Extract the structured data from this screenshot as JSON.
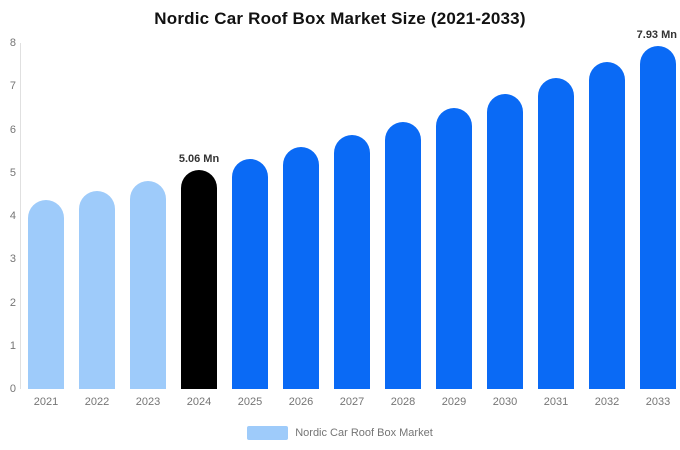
{
  "title": "Nordic Car Roof Box Market Size (2021-2033)",
  "chart_data": {
    "type": "bar",
    "title": "Nordic Car Roof Box Market Size (2021-2033)",
    "categories": [
      "2021",
      "2022",
      "2023",
      "2024",
      "2025",
      "2026",
      "2027",
      "2028",
      "2029",
      "2030",
      "2031",
      "2032",
      "2033"
    ],
    "series": [
      {
        "name": "Nordic Car Roof Box Market",
        "values": [
          4.36,
          4.58,
          4.81,
          5.06,
          5.32,
          5.59,
          5.88,
          6.18,
          6.5,
          6.83,
          7.18,
          7.55,
          7.93
        ]
      }
    ],
    "bar_colors": [
      "#9ECBFA",
      "#9ECBFA",
      "#9ECBFA",
      "#000000",
      "#0A6AF5",
      "#0A6AF5",
      "#0A6AF5",
      "#0A6AF5",
      "#0A6AF5",
      "#0A6AF5",
      "#0A6AF5",
      "#0A6AF5",
      "#0A6AF5"
    ],
    "data_labels": [
      null,
      null,
      null,
      "5.06 Mn",
      null,
      null,
      null,
      null,
      null,
      null,
      null,
      null,
      "7.93 Mn"
    ],
    "xlabel": "",
    "ylabel": "",
    "ylim": [
      0,
      8
    ],
    "yticks": [
      0,
      1,
      2,
      3,
      4,
      5,
      6,
      7,
      8
    ],
    "grid": "off",
    "legend": {
      "position": "bottom",
      "label": "Nordic Car Roof Box Market",
      "swatch_color": "#9ECBFA"
    },
    "colors": {
      "highlight_bar": "#000000",
      "history_bar": "#9ECBFA",
      "forecast_bar": "#0A6AF5",
      "axis_line": "#e0e0e0",
      "tick_text": "#757575",
      "title_text": "#111111",
      "data_label_text": "#333333"
    }
  }
}
